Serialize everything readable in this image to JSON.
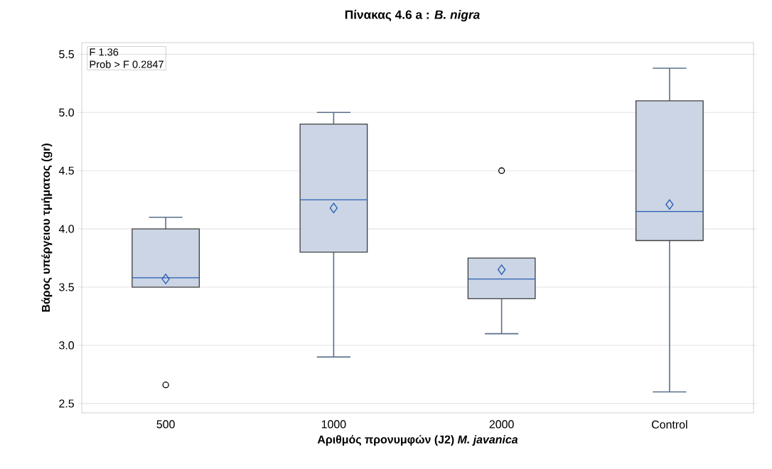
{
  "chart_data": {
    "type": "box",
    "title": "Πίνακας 4.6 a : *B. nigra*",
    "xlabel": "Αριθμός προνυμφών (J2) *M. javanica*",
    "ylabel": "Βάρος υπέργειου τμήματος (gr)",
    "categories": [
      "500",
      "1000",
      "2000",
      "Control"
    ],
    "boxes": [
      {
        "low": 3.5,
        "q1": 3.5,
        "median": 3.58,
        "q3": 4.0,
        "high": 4.1,
        "mean": 3.57,
        "outliers": [
          2.66
        ]
      },
      {
        "low": 2.9,
        "q1": 3.8,
        "median": 4.25,
        "q3": 4.9,
        "high": 5.0,
        "mean": 4.18
      },
      {
        "low": 3.1,
        "q1": 3.4,
        "median": 3.57,
        "q3": 3.75,
        "high": 3.75,
        "mean": 3.65,
        "outliers": [
          4.5
        ]
      },
      {
        "low": 2.6,
        "q1": 3.9,
        "median": 4.15,
        "q3": 5.1,
        "high": 5.38,
        "mean": 4.21
      }
    ],
    "color": "#cbd5e5",
    "ylim": [
      2.42,
      5.6
    ],
    "yticks": [
      2.5,
      {
        "value": 3,
        "label": "3.0"
      },
      3.5,
      {
        "value": 4,
        "label": "4.0"
      },
      4.5,
      {
        "value": 5,
        "label": "5.0"
      },
      5.5
    ],
    "grid": "y",
    "annotations": [
      "F 1.36",
      "Prob > F 0.2847"
    ]
  }
}
